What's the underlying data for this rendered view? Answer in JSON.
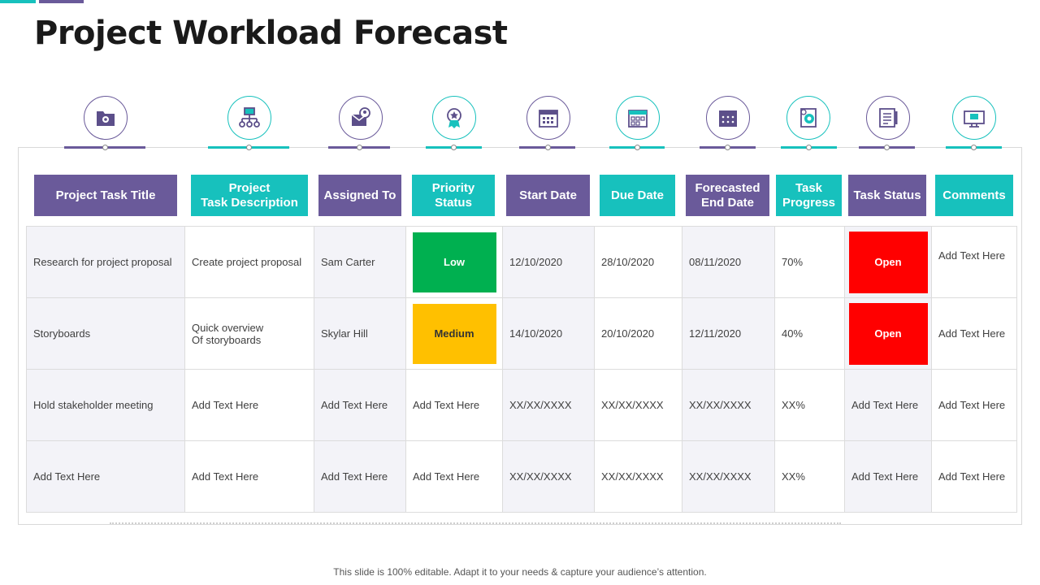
{
  "title": "Project Workload Forecast",
  "colors": {
    "purple": "#6a5a9a",
    "teal": "#17c1bd",
    "low": "#00b050",
    "medium": "#ffc000",
    "open": "#ff0000"
  },
  "icons": [
    "folder-gear-icon",
    "org-chart-icon",
    "user-message-icon",
    "award-star-icon",
    "calendar-icon",
    "calendar-check-icon",
    "calendar-grid-icon",
    "document-gear-icon",
    "document-list-icon",
    "monitor-chat-icon"
  ],
  "headers": [
    "Project Task Title",
    "Project\nTask Description",
    "Assigned To",
    "Priority Status",
    "Start Date",
    "Due Date",
    "Forecasted\nEnd Date",
    "Task\nProgress",
    "Task Status",
    "Comments"
  ],
  "rows": [
    [
      "Research for project proposal",
      "Create project proposal",
      "Sam Carter",
      "Low",
      "12/10/2020",
      "28/10/2020",
      "08/11/2020",
      "70%",
      "Open",
      "Add Text Here"
    ],
    [
      "Storyboards",
      "Quick overview\nOf storyboards",
      "Skylar Hill",
      "Medium",
      "14/10/2020",
      "20/10/2020",
      "12/11/2020",
      "40%",
      "Open",
      "Add Text Here"
    ],
    [
      "Hold stakeholder meeting",
      "Add Text Here",
      "Add Text Here",
      "Add Text Here",
      "XX/XX/XXXX",
      "XX/XX/XXXX",
      "XX/XX/XXXX",
      "XX%",
      "Add Text Here",
      "Add Text Here"
    ],
    [
      "Add Text Here",
      "Add Text Here",
      "Add Text Here",
      "Add Text Here",
      "XX/XX/XXXX",
      "XX/XX/XXXX",
      "XX/XX/XXXX",
      "XX%",
      "Add Text Here",
      "Add Text Here"
    ]
  ],
  "footer": "This slide is 100% editable. Adapt it to your needs & capture your audience’s attention."
}
